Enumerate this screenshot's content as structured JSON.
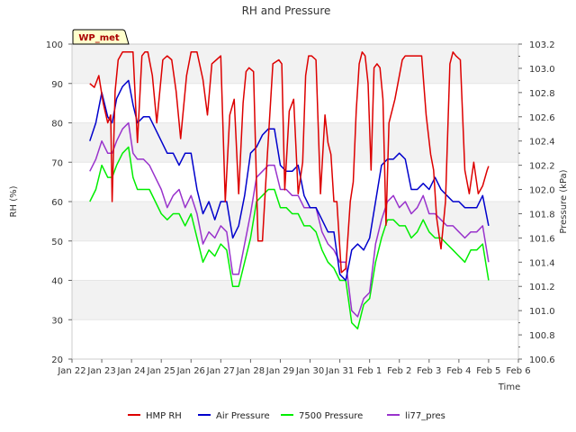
{
  "chart_data": {
    "type": "line",
    "title": "RH and Pressure",
    "badge": "WP_met",
    "xlabel": "Time",
    "ylabel_left": "RH (%)",
    "ylabel_right": "Pressure (kPa)",
    "xlim": [
      0,
      15
    ],
    "ylim_left": [
      20,
      100
    ],
    "ylim_right": [
      100.6,
      103.2
    ],
    "x_ticks": [
      0,
      1,
      2,
      3,
      4,
      5,
      6,
      7,
      8,
      9,
      10,
      11,
      12,
      13,
      14,
      15
    ],
    "x_tick_labels": [
      "Jan 22",
      "Jan 23",
      "Jan 24",
      "Jan 25",
      "Jan 26",
      "Jan 27",
      "Jan 28",
      "Jan 29",
      "Jan 30",
      "Jan 31",
      "Feb 1",
      "Feb 2",
      "Feb 3",
      "Feb 4",
      "Feb 5",
      "Feb 6"
    ],
    "y_left_ticks": [
      20,
      30,
      40,
      50,
      60,
      70,
      80,
      90,
      100
    ],
    "y_right_ticks": [
      100.6,
      100.8,
      101.0,
      101.2,
      101.4,
      101.6,
      101.8,
      102.0,
      102.2,
      102.4,
      102.6,
      102.8,
      103.0,
      103.2
    ],
    "legend_position": "bottom",
    "series": [
      {
        "name": "HMP RH",
        "color": "#dd0000",
        "axis": "left",
        "x": [
          0.6,
          0.75,
          0.9,
          1.05,
          1.2,
          1.3,
          1.35,
          1.45,
          1.55,
          1.7,
          1.9,
          2.05,
          2.2,
          2.35,
          2.45,
          2.55,
          2.7,
          2.85,
          3.05,
          3.2,
          3.35,
          3.5,
          3.65,
          3.85,
          4.0,
          4.2,
          4.4,
          4.55,
          4.7,
          4.85,
          5.0,
          5.15,
          5.3,
          5.45,
          5.6,
          5.75,
          5.85,
          5.95,
          6.1,
          6.25,
          6.4,
          6.55,
          6.75,
          6.95,
          7.05,
          7.15,
          7.3,
          7.45,
          7.6,
          7.75,
          7.85,
          7.95,
          8.05,
          8.2,
          8.35,
          8.5,
          8.6,
          8.7,
          8.8,
          8.9,
          9.05,
          9.2,
          9.35,
          9.45,
          9.55,
          9.65,
          9.75,
          9.85,
          9.95,
          10.05,
          10.15,
          10.25,
          10.35,
          10.45,
          10.55,
          10.65,
          10.75,
          10.85,
          10.95,
          11.1,
          11.2,
          11.3,
          11.45,
          11.6,
          11.75,
          11.9,
          12.05,
          12.15,
          12.25,
          12.4,
          12.55,
          12.7,
          12.8,
          12.9,
          13.05,
          13.2,
          13.35,
          13.5,
          13.65,
          13.8,
          13.95,
          14.0
        ],
        "y": [
          90,
          89,
          92,
          85,
          80,
          82,
          60,
          88,
          96,
          98,
          98,
          98,
          75,
          97,
          98,
          98,
          92,
          80,
          96,
          97,
          96,
          88,
          76,
          92,
          98,
          98,
          91,
          82,
          95,
          96,
          97,
          60,
          82,
          86,
          62,
          85,
          93,
          94,
          93,
          50,
          50,
          70,
          95,
          96,
          95,
          63,
          83,
          86,
          62,
          70,
          92,
          97,
          97,
          96,
          62,
          82,
          75,
          72,
          60,
          60,
          42,
          43,
          60,
          65,
          83,
          95,
          98,
          97,
          90,
          68,
          94,
          95,
          94,
          86,
          54,
          80,
          83,
          86,
          90,
          96,
          97,
          97,
          97,
          97,
          97,
          82,
          72,
          68,
          56,
          48,
          60,
          95,
          98,
          97,
          96,
          68,
          62,
          70,
          62,
          64,
          68,
          69
        ]
      },
      {
        "name": "Air Pressure",
        "color": "#0000cc",
        "axis": "right",
        "x": [
          0.6,
          0.8,
          1.0,
          1.2,
          1.35,
          1.5,
          1.7,
          1.9,
          2.05,
          2.2,
          2.4,
          2.6,
          2.8,
          3.0,
          3.2,
          3.4,
          3.6,
          3.8,
          4.0,
          4.2,
          4.4,
          4.6,
          4.8,
          5.0,
          5.2,
          5.4,
          5.6,
          5.8,
          6.0,
          6.2,
          6.4,
          6.6,
          6.8,
          7.0,
          7.2,
          7.4,
          7.6,
          7.8,
          8.0,
          8.2,
          8.4,
          8.6,
          8.8,
          9.0,
          9.2,
          9.4,
          9.6,
          9.8,
          10.0,
          10.2,
          10.4,
          10.6,
          10.8,
          11.0,
          11.2,
          11.4,
          11.6,
          11.8,
          12.0,
          12.2,
          12.4,
          12.6,
          12.8,
          13.0,
          13.2,
          13.4,
          13.6,
          13.8,
          14.0
        ],
        "y": [
          102.4,
          102.55,
          102.8,
          102.6,
          102.55,
          102.75,
          102.85,
          102.9,
          102.7,
          102.55,
          102.6,
          102.6,
          102.5,
          102.4,
          102.3,
          102.3,
          102.2,
          102.3,
          102.3,
          102.0,
          101.8,
          101.9,
          101.75,
          101.9,
          101.9,
          101.6,
          101.7,
          101.95,
          102.3,
          102.35,
          102.45,
          102.5,
          102.5,
          102.2,
          102.15,
          102.15,
          102.2,
          101.95,
          101.85,
          101.85,
          101.75,
          101.65,
          101.65,
          101.3,
          101.25,
          101.5,
          101.55,
          101.5,
          101.6,
          101.9,
          102.2,
          102.25,
          102.25,
          102.3,
          102.25,
          102.0,
          102.0,
          102.05,
          102.0,
          102.1,
          102.0,
          101.95,
          101.9,
          101.9,
          101.85,
          101.85,
          101.85,
          101.95,
          101.7
        ]
      },
      {
        "name": "7500 Pressure",
        "color": "#00ee00",
        "axis": "right",
        "x": [
          0.6,
          0.8,
          1.0,
          1.2,
          1.35,
          1.5,
          1.7,
          1.9,
          2.05,
          2.2,
          2.4,
          2.6,
          2.8,
          3.0,
          3.2,
          3.4,
          3.6,
          3.8,
          4.0,
          4.2,
          4.4,
          4.6,
          4.8,
          5.0,
          5.2,
          5.4,
          5.6,
          5.8,
          6.0,
          6.2,
          6.4,
          6.6,
          6.8,
          7.0,
          7.2,
          7.4,
          7.6,
          7.8,
          8.0,
          8.2,
          8.4,
          8.6,
          8.8,
          9.0,
          9.2,
          9.4,
          9.6,
          9.8,
          10.0,
          10.2,
          10.4,
          10.6,
          10.8,
          11.0,
          11.2,
          11.4,
          11.6,
          11.8,
          12.0,
          12.2,
          12.4,
          12.6,
          12.8,
          13.0,
          13.2,
          13.4,
          13.6,
          13.8,
          14.0
        ],
        "y": [
          101.9,
          102.0,
          102.2,
          102.1,
          102.1,
          102.2,
          102.3,
          102.35,
          102.1,
          102.0,
          102.0,
          102.0,
          101.9,
          101.8,
          101.75,
          101.8,
          101.8,
          101.7,
          101.8,
          101.6,
          101.4,
          101.5,
          101.45,
          101.55,
          101.5,
          101.2,
          101.2,
          101.4,
          101.6,
          101.9,
          101.95,
          102.0,
          102.0,
          101.85,
          101.85,
          101.8,
          101.8,
          101.7,
          101.7,
          101.65,
          101.5,
          101.4,
          101.35,
          101.25,
          101.25,
          100.9,
          100.85,
          101.05,
          101.1,
          101.4,
          101.6,
          101.75,
          101.75,
          101.7,
          101.7,
          101.6,
          101.65,
          101.75,
          101.65,
          101.6,
          101.6,
          101.55,
          101.5,
          101.45,
          101.4,
          101.5,
          101.5,
          101.55,
          101.25
        ]
      },
      {
        "name": "li77_pres",
        "color": "#9933cc",
        "axis": "right",
        "x": [
          0.6,
          0.8,
          1.0,
          1.2,
          1.35,
          1.5,
          1.7,
          1.9,
          2.05,
          2.2,
          2.4,
          2.6,
          2.8,
          3.0,
          3.2,
          3.4,
          3.6,
          3.8,
          4.0,
          4.2,
          4.4,
          4.6,
          4.8,
          5.0,
          5.2,
          5.4,
          5.6,
          5.8,
          6.0,
          6.2,
          6.4,
          6.6,
          6.8,
          7.0,
          7.2,
          7.4,
          7.6,
          7.8,
          8.0,
          8.2,
          8.4,
          8.6,
          8.8,
          9.0,
          9.2,
          9.4,
          9.6,
          9.8,
          10.0,
          10.2,
          10.4,
          10.6,
          10.8,
          11.0,
          11.2,
          11.4,
          11.6,
          11.8,
          12.0,
          12.2,
          12.4,
          12.6,
          12.8,
          13.0,
          13.2,
          13.4,
          13.6,
          13.8,
          14.0
        ],
        "y": [
          102.15,
          102.25,
          102.4,
          102.3,
          102.3,
          102.4,
          102.5,
          102.55,
          102.3,
          102.25,
          102.25,
          102.2,
          102.1,
          102.0,
          101.85,
          101.95,
          102.0,
          101.85,
          101.95,
          101.8,
          101.55,
          101.65,
          101.6,
          101.7,
          101.65,
          101.3,
          101.3,
          101.55,
          101.8,
          102.1,
          102.15,
          102.2,
          102.2,
          102.0,
          102.0,
          101.95,
          101.95,
          101.85,
          101.85,
          101.85,
          101.65,
          101.55,
          101.5,
          101.4,
          101.4,
          101.0,
          100.95,
          101.1,
          101.15,
          101.55,
          101.75,
          101.9,
          101.95,
          101.85,
          101.9,
          101.8,
          101.85,
          101.95,
          101.8,
          101.8,
          101.75,
          101.7,
          101.7,
          101.65,
          101.6,
          101.65,
          101.65,
          101.7,
          101.4
        ]
      }
    ]
  }
}
